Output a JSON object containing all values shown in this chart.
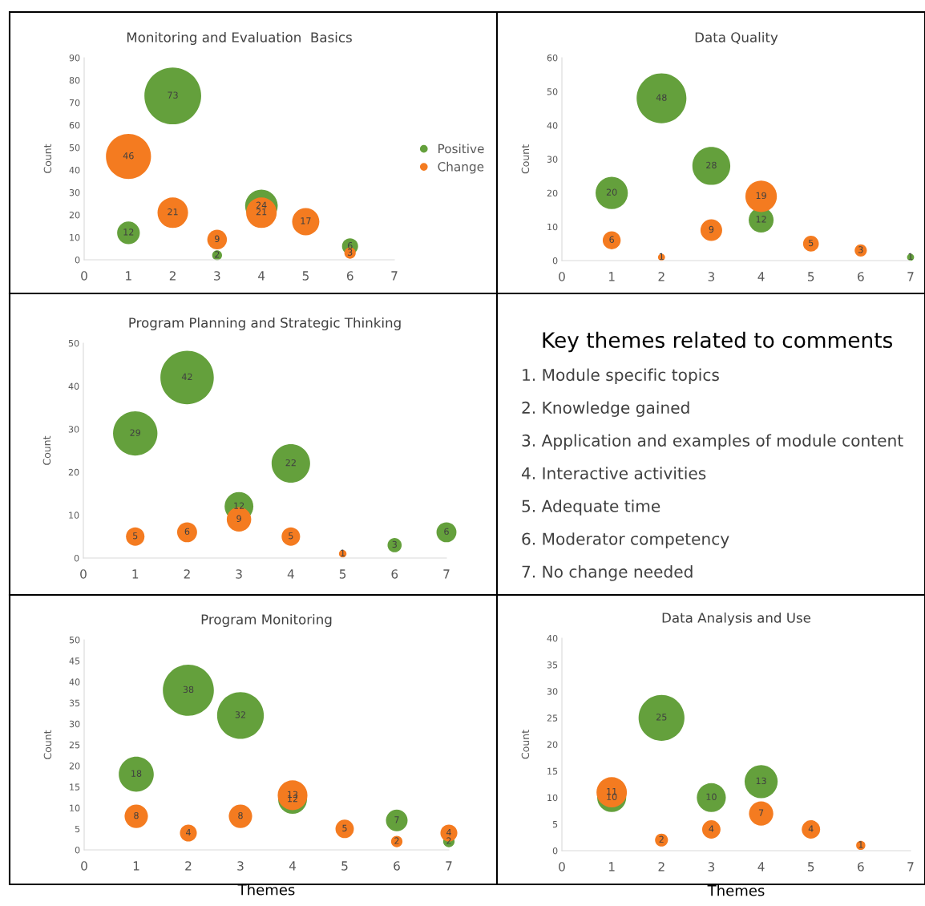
{
  "chart_data": [
    {
      "type": "bubble",
      "title": "Monitoring and Evaluation  Basics",
      "ylabel": "Count",
      "xlim": [
        0,
        7
      ],
      "xticks": [
        0,
        1,
        2,
        3,
        4,
        5,
        6,
        7
      ],
      "ylim": [
        0,
        90
      ],
      "yticks": [
        0,
        10,
        20,
        30,
        40,
        50,
        60,
        70,
        80,
        90
      ],
      "grid": false,
      "data_labels": true,
      "legend": "right",
      "series": [
        {
          "name": "Positive",
          "color": "#64a03c",
          "x": [
            1,
            2,
            3,
            4,
            6
          ],
          "values": [
            12,
            73,
            2,
            24,
            6
          ],
          "sizes": [
            0.16,
            1,
            0.03,
            0.33,
            0.08
          ]
        },
        {
          "name": "Change",
          "color": "#f47b20",
          "x": [
            1,
            2,
            3,
            4,
            5,
            6
          ],
          "values": [
            46,
            21,
            9,
            21,
            17,
            3
          ],
          "sizes": [
            0.63,
            0.29,
            0.12,
            0.29,
            0.23,
            0.04
          ]
        }
      ]
    },
    {
      "type": "bubble",
      "title": "Data Quality",
      "ylabel": "Count",
      "xlim": [
        0,
        7
      ],
      "xticks": [
        0,
        1,
        2,
        3,
        4,
        5,
        6,
        7
      ],
      "ylim": [
        0,
        60
      ],
      "yticks": [
        0,
        10,
        20,
        30,
        40,
        50,
        60
      ],
      "grid": false,
      "data_labels": true,
      "series": [
        {
          "color": "#64a03c",
          "x": [
            1,
            2,
            3,
            4,
            7
          ],
          "values": [
            20,
            48,
            28,
            12,
            1
          ],
          "sizes": [
            0.42,
            1,
            0.58,
            0.25,
            0.02
          ]
        },
        {
          "color": "#f47b20",
          "x": [
            1,
            2,
            3,
            4,
            5,
            6
          ],
          "values": [
            6,
            1,
            9,
            19,
            5,
            3
          ],
          "sizes": [
            0.13,
            0.02,
            0.19,
            0.4,
            0.1,
            0.06
          ]
        }
      ]
    },
    {
      "type": "bubble",
      "title": "Program Planning and Strategic Thinking",
      "ylabel": "Count",
      "xlim": [
        0,
        7
      ],
      "xticks": [
        0,
        1,
        2,
        3,
        4,
        5,
        6,
        7
      ],
      "ylim": [
        0,
        50
      ],
      "yticks": [
        0,
        10,
        20,
        30,
        40,
        50
      ],
      "grid": false,
      "data_labels": true,
      "series": [
        {
          "color": "#64a03c",
          "x": [
            1,
            2,
            3,
            4,
            6,
            7
          ],
          "values": [
            29,
            42,
            12,
            22,
            3,
            6
          ],
          "sizes": [
            0.69,
            1,
            0.29,
            0.52,
            0.07,
            0.14
          ]
        },
        {
          "color": "#f47b20",
          "x": [
            1,
            2,
            3,
            4,
            5
          ],
          "values": [
            5,
            6,
            9,
            5,
            1
          ],
          "sizes": [
            0.12,
            0.14,
            0.21,
            0.12,
            0.02
          ]
        }
      ]
    },
    {
      "type": "other",
      "title": "Key themes related to comments",
      "annotations": [
        "1. Module specific topics",
        "2. Knowledge gained",
        "3. Application and examples of module content",
        "4. Interactive activities",
        "5. Adequate time",
        "6. Moderator competency",
        "7. No change needed"
      ]
    },
    {
      "type": "bubble",
      "title": "Program Monitoring",
      "xlabel": "Themes",
      "ylabel": "Count",
      "xlim": [
        0,
        7
      ],
      "xticks": [
        0,
        1,
        2,
        3,
        4,
        5,
        6,
        7
      ],
      "ylim": [
        0,
        50
      ],
      "yticks": [
        0,
        5,
        10,
        15,
        20,
        25,
        30,
        35,
        40,
        45,
        50
      ],
      "grid": false,
      "data_labels": true,
      "series": [
        {
          "color": "#64a03c",
          "x": [
            1,
            2,
            3,
            4,
            6,
            7
          ],
          "values": [
            18,
            38,
            32,
            12,
            7,
            2
          ],
          "sizes": [
            0.47,
            1,
            0.84,
            0.32,
            0.18,
            0.05
          ]
        },
        {
          "color": "#f47b20",
          "x": [
            1,
            2,
            3,
            4,
            5,
            6,
            7
          ],
          "values": [
            8,
            4,
            8,
            13,
            5,
            2,
            4
          ],
          "sizes": [
            0.21,
            0.11,
            0.21,
            0.34,
            0.13,
            0.05,
            0.11
          ]
        }
      ]
    },
    {
      "type": "bubble",
      "title": "Data Analysis and Use",
      "xlabel": "Themes",
      "ylabel": "Count",
      "xlim": [
        0,
        7
      ],
      "xticks": [
        0,
        1,
        2,
        3,
        4,
        5,
        6,
        7
      ],
      "ylim": [
        0,
        40
      ],
      "yticks": [
        0,
        5,
        10,
        15,
        20,
        25,
        30,
        35,
        40
      ],
      "grid": false,
      "data_labels": true,
      "series": [
        {
          "color": "#64a03c",
          "x": [
            1,
            2,
            3,
            4
          ],
          "values": [
            10,
            25,
            10,
            13
          ],
          "sizes": [
            0.4,
            1,
            0.4,
            0.52
          ]
        },
        {
          "color": "#f47b20",
          "x": [
            1,
            2,
            3,
            4,
            5,
            6
          ],
          "values": [
            11,
            2,
            4,
            7,
            4,
            1
          ],
          "sizes": [
            0.44,
            0.08,
            0.16,
            0.28,
            0.16,
            0.04
          ]
        }
      ]
    }
  ]
}
